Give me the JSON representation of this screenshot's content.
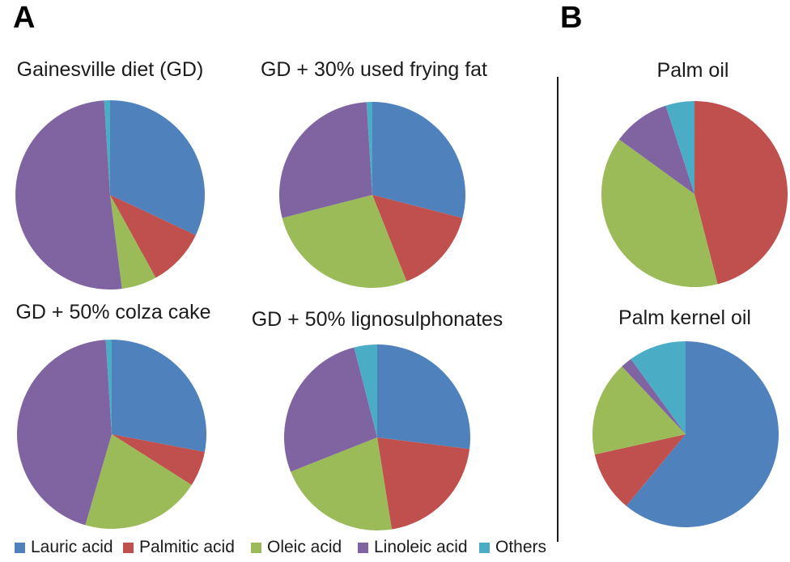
{
  "figure": {
    "panel_a_label": "A",
    "panel_b_label": "B"
  },
  "legend": {
    "items": [
      {
        "name": "lauric-acid",
        "label": "Lauric acid",
        "color": "#4F81BD"
      },
      {
        "name": "palmitic-acid",
        "label": "Palmitic acid",
        "color": "#C0504D"
      },
      {
        "name": "oleic-acid",
        "label": "Oleic acid",
        "color": "#9BBB59"
      },
      {
        "name": "linoleic-acid",
        "label": "Linoleic acid",
        "color": "#8064A2"
      },
      {
        "name": "others",
        "label": "Others",
        "color": "#4BACC6"
      }
    ]
  },
  "chart_data": [
    {
      "type": "pie",
      "panel": "A",
      "title": "Gainesville diet (GD)",
      "categories": [
        "Lauric acid",
        "Palmitic acid",
        "Oleic acid",
        "Linoleic acid",
        "Others"
      ],
      "values": [
        32,
        10,
        6,
        51,
        1
      ],
      "unit": "percent",
      "start_angle_deg": 0,
      "direction": "clockwise"
    },
    {
      "type": "pie",
      "panel": "A",
      "title": "GD + 30% used frying fat",
      "categories": [
        "Lauric acid",
        "Palmitic acid",
        "Oleic acid",
        "Linoleic acid",
        "Others"
      ],
      "values": [
        29,
        15,
        27,
        28,
        1
      ],
      "unit": "percent",
      "start_angle_deg": 0,
      "direction": "clockwise"
    },
    {
      "type": "pie",
      "panel": "A",
      "title": "GD + 50% colza cake",
      "categories": [
        "Lauric acid",
        "Palmitic acid",
        "Oleic acid",
        "Linoleic acid",
        "Others"
      ],
      "values": [
        28,
        6,
        20.5,
        44.5,
        1
      ],
      "unit": "percent",
      "start_angle_deg": 0,
      "direction": "clockwise"
    },
    {
      "type": "pie",
      "panel": "A",
      "title": "GD + 50% lignosulphonates",
      "categories": [
        "Lauric acid",
        "Palmitic acid",
        "Oleic acid",
        "Linoleic acid",
        "Others"
      ],
      "values": [
        27,
        20.5,
        21.5,
        27,
        4
      ],
      "unit": "percent",
      "start_angle_deg": 0,
      "direction": "clockwise"
    },
    {
      "type": "pie",
      "panel": "B",
      "title": "Palm oil",
      "categories": [
        "Lauric acid",
        "Palmitic acid",
        "Oleic acid",
        "Linoleic acid",
        "Others"
      ],
      "values": [
        0,
        46,
        39,
        10,
        5
      ],
      "unit": "percent",
      "start_angle_deg": 0,
      "direction": "clockwise"
    },
    {
      "type": "pie",
      "panel": "B",
      "title": "Palm kernel oil",
      "categories": [
        "Lauric acid",
        "Palmitic acid",
        "Oleic acid",
        "Linoleic acid",
        "Others"
      ],
      "values": [
        61,
        10.5,
        16.5,
        2,
        10
      ],
      "unit": "percent",
      "start_angle_deg": 0,
      "direction": "clockwise"
    }
  ]
}
